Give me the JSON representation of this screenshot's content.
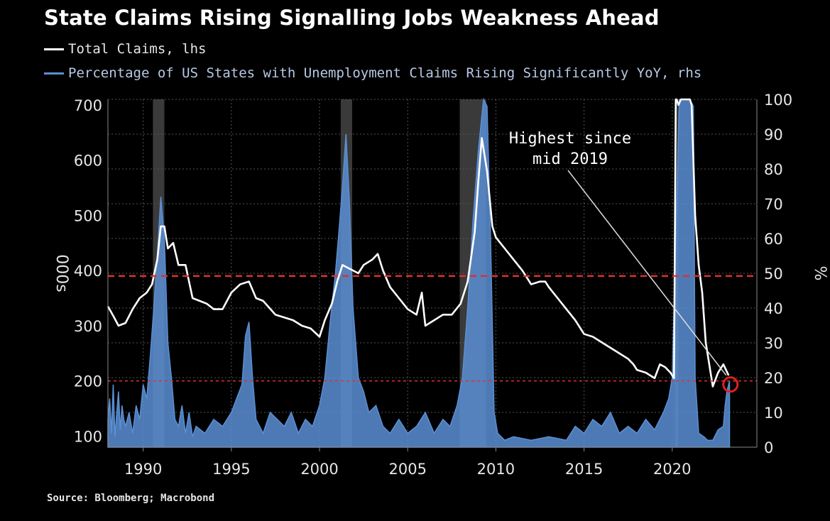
{
  "chart_data": {
    "type": "line",
    "title": "State Claims Rising Signalling Jobs Weakness Ahead",
    "source": "Source: Bloomberg; Macrobond",
    "ylabel_left": "000s",
    "ylabel_right": "%",
    "xlim": [
      1988,
      2024.8
    ],
    "ylim_left": [
      80,
      710
    ],
    "ylim_right": [
      0,
      100
    ],
    "x_ticks": [
      1990,
      1995,
      2000,
      2005,
      2010,
      2015,
      2020
    ],
    "y_ticks_left": [
      100,
      200,
      300,
      400,
      500,
      600,
      700
    ],
    "y_ticks_right": [
      0,
      10,
      20,
      30,
      40,
      50,
      60,
      70,
      80,
      90,
      100
    ],
    "grid": true,
    "colors": {
      "total": "#ffffff",
      "pct": "#5b8fd4",
      "recession": "#3a3a3a",
      "reference": "#e03030"
    },
    "recessions": [
      [
        1990.55,
        1991.2
      ],
      [
        2001.2,
        2001.85
      ],
      [
        2007.95,
        2009.45
      ],
      [
        2020.15,
        2020.35
      ]
    ],
    "reference_lines_left": [
      390,
      200
    ],
    "series": [
      {
        "name": "Total Claims, lhs",
        "axis": "left",
        "x": [
          1988.0,
          1988.3,
          1988.6,
          1989.0,
          1989.4,
          1989.8,
          1990.2,
          1990.5,
          1990.8,
          1991.0,
          1991.2,
          1991.4,
          1991.7,
          1992.0,
          1992.4,
          1992.8,
          1993.2,
          1993.6,
          1994.0,
          1994.5,
          1995.0,
          1995.5,
          1996.0,
          1996.4,
          1996.8,
          1997.5,
          1998.0,
          1998.5,
          1999.0,
          1999.5,
          2000.0,
          2000.3,
          2000.7,
          2001.0,
          2001.3,
          2001.6,
          2001.9,
          2002.2,
          2002.5,
          2003.0,
          2003.3,
          2003.6,
          2004.0,
          2004.5,
          2005.0,
          2005.5,
          2005.8,
          2006.0,
          2006.5,
          2007.0,
          2007.5,
          2008.0,
          2008.4,
          2008.8,
          2009.0,
          2009.2,
          2009.5,
          2009.8,
          2010.0,
          2010.5,
          2011.0,
          2011.5,
          2012.0,
          2012.5,
          2012.8,
          2013.0,
          2013.5,
          2014.0,
          2014.5,
          2015.0,
          2015.5,
          2016.0,
          2016.5,
          2017.0,
          2017.5,
          2017.8,
          2018.0,
          2018.5,
          2019.0,
          2019.3,
          2019.6,
          2019.9,
          2020.1,
          2020.2,
          2020.25,
          2020.35,
          2020.5,
          2020.8,
          2021.0,
          2021.1,
          2021.3,
          2021.5,
          2021.7,
          2021.9,
          2022.1,
          2022.3,
          2022.6,
          2022.9,
          2023.2
        ],
        "values": [
          335,
          318,
          300,
          305,
          330,
          350,
          360,
          375,
          420,
          480,
          480,
          440,
          450,
          410,
          410,
          350,
          345,
          340,
          330,
          330,
          360,
          375,
          380,
          350,
          345,
          320,
          315,
          310,
          300,
          295,
          280,
          310,
          340,
          380,
          410,
          405,
          400,
          395,
          410,
          420,
          430,
          400,
          370,
          350,
          330,
          320,
          360,
          300,
          310,
          320,
          320,
          340,
          380,
          470,
          560,
          640,
          580,
          480,
          460,
          440,
          420,
          400,
          375,
          380,
          380,
          370,
          350,
          330,
          310,
          285,
          280,
          270,
          260,
          250,
          240,
          230,
          220,
          215,
          205,
          230,
          225,
          215,
          205,
          710,
          710,
          700,
          710,
          720,
          720,
          700,
          500,
          410,
          360,
          270,
          230,
          190,
          215,
          230,
          210
        ]
      },
      {
        "name": "Percentage of US States with Unemployment Claims Rising Significantly YoY, rhs",
        "axis": "right",
        "x": [
          1988.0,
          1988.1,
          1988.2,
          1988.3,
          1988.4,
          1988.5,
          1988.6,
          1988.7,
          1988.8,
          1988.9,
          1989.0,
          1989.2,
          1989.4,
          1989.6,
          1989.8,
          1990.0,
          1990.2,
          1990.4,
          1990.6,
          1990.8,
          1991.0,
          1991.2,
          1991.4,
          1991.6,
          1991.8,
          1992.0,
          1992.2,
          1992.4,
          1992.6,
          1992.8,
          1993.0,
          1993.5,
          1994.0,
          1994.5,
          1995.0,
          1995.3,
          1995.6,
          1995.8,
          1996.0,
          1996.2,
          1996.4,
          1996.8,
          1997.2,
          1997.6,
          1998.0,
          1998.4,
          1998.8,
          1999.2,
          1999.6,
          2000.0,
          2000.3,
          2000.6,
          2000.9,
          2001.1,
          2001.3,
          2001.5,
          2001.7,
          2001.9,
          2002.2,
          2002.5,
          2002.8,
          2003.2,
          2003.6,
          2004.0,
          2004.5,
          2005.0,
          2005.5,
          2006.0,
          2006.5,
          2007.0,
          2007.4,
          2007.8,
          2008.1,
          2008.4,
          2008.7,
          2009.0,
          2009.3,
          2009.5,
          2009.7,
          2009.9,
          2010.1,
          2010.5,
          2011.0,
          2012.0,
          2013.0,
          2014.0,
          2014.5,
          2015.0,
          2015.5,
          2016.0,
          2016.5,
          2017.0,
          2017.5,
          2018.0,
          2018.5,
          2019.0,
          2019.5,
          2019.8,
          2020.0,
          2020.1,
          2020.2,
          2020.4,
          2020.8,
          2021.0,
          2021.2,
          2021.3,
          2021.5,
          2021.8,
          2022.0,
          2022.3,
          2022.6,
          2022.9,
          2023.0,
          2023.1,
          2023.25
        ],
        "values": [
          8,
          14,
          4,
          18,
          3,
          10,
          16,
          5,
          12,
          8,
          6,
          10,
          4,
          12,
          8,
          18,
          14,
          26,
          40,
          55,
          72,
          60,
          30,
          20,
          8,
          6,
          12,
          4,
          10,
          3,
          6,
          4,
          8,
          6,
          10,
          14,
          18,
          32,
          36,
          20,
          8,
          4,
          10,
          8,
          6,
          10,
          4,
          8,
          6,
          12,
          20,
          36,
          50,
          62,
          75,
          90,
          70,
          40,
          20,
          16,
          10,
          12,
          6,
          4,
          8,
          4,
          6,
          10,
          4,
          8,
          6,
          12,
          20,
          40,
          65,
          85,
          100,
          98,
          60,
          10,
          4,
          2,
          3,
          2,
          3,
          2,
          6,
          4,
          8,
          6,
          10,
          4,
          6,
          4,
          8,
          5,
          10,
          14,
          20,
          40,
          60,
          100,
          100,
          100,
          98,
          20,
          4,
          3,
          2,
          2,
          5,
          6,
          12,
          16,
          19
        ]
      }
    ],
    "annotation": {
      "line1": "Highest since",
      "line2": "mid 2019",
      "target_x": 2023.3,
      "target_y": 200
    }
  }
}
